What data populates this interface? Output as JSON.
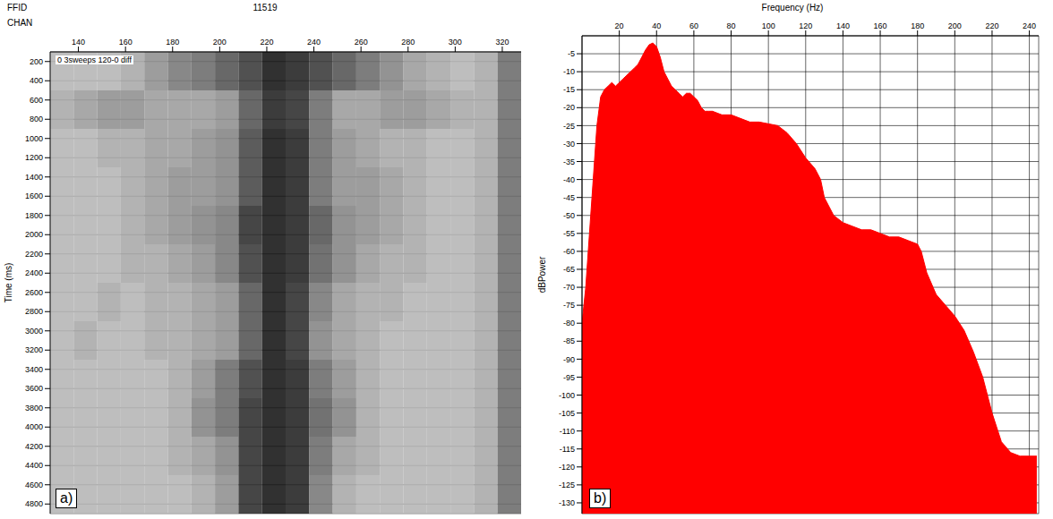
{
  "chart_data": [
    {
      "type": "heatmap",
      "title_label": "FFID",
      "title": "11519",
      "xlabel": "CHAN",
      "ylabel": "Time (ms)",
      "annotation": "0 3sweeps 120-0 diff",
      "panel_label": "a)",
      "color": "#000000",
      "grid": true,
      "xlim": [
        128,
        328
      ],
      "xticks": [
        140,
        160,
        180,
        200,
        220,
        240,
        260,
        280,
        300,
        320
      ],
      "ylim": [
        100,
        4900
      ],
      "yticks": [
        200,
        400,
        600,
        800,
        1000,
        1200,
        1400,
        1600,
        1800,
        2000,
        2200,
        2400,
        2600,
        2800,
        3000,
        3200,
        3400,
        3600,
        3800,
        4000,
        4200,
        4400,
        4600,
        4800
      ],
      "x_edges": [
        128,
        138,
        148,
        158,
        168,
        178,
        188,
        198,
        208,
        218,
        228,
        238,
        248,
        258,
        268,
        278,
        288,
        298,
        308,
        318,
        328
      ],
      "y_edges": [
        100,
        500,
        900,
        1300,
        1700,
        2100,
        2500,
        2900,
        3300,
        3700,
        4100,
        4500,
        4900
      ],
      "cells": [
        [
          0.3,
          0.3,
          0.3,
          0.35,
          0.45,
          0.55,
          0.6,
          0.7,
          0.8,
          0.95,
          0.9,
          0.8,
          0.7,
          0.6,
          0.5,
          0.4,
          0.35,
          0.3,
          0.35,
          0.6
        ],
        [
          0.35,
          0.4,
          0.45,
          0.45,
          0.4,
          0.4,
          0.4,
          0.45,
          0.7,
          0.9,
          0.85,
          0.6,
          0.4,
          0.4,
          0.45,
          0.45,
          0.4,
          0.35,
          0.35,
          0.6
        ],
        [
          0.3,
          0.3,
          0.35,
          0.35,
          0.4,
          0.4,
          0.45,
          0.5,
          0.75,
          0.95,
          0.9,
          0.6,
          0.45,
          0.4,
          0.35,
          0.35,
          0.3,
          0.3,
          0.35,
          0.6
        ],
        [
          0.3,
          0.3,
          0.3,
          0.35,
          0.4,
          0.45,
          0.45,
          0.5,
          0.75,
          0.95,
          0.9,
          0.6,
          0.45,
          0.45,
          0.4,
          0.35,
          0.3,
          0.3,
          0.35,
          0.6
        ],
        [
          0.3,
          0.3,
          0.3,
          0.35,
          0.4,
          0.45,
          0.5,
          0.55,
          0.85,
          0.95,
          0.9,
          0.7,
          0.5,
          0.45,
          0.4,
          0.35,
          0.3,
          0.3,
          0.35,
          0.6
        ],
        [
          0.3,
          0.3,
          0.3,
          0.35,
          0.35,
          0.4,
          0.45,
          0.55,
          0.8,
          0.95,
          0.9,
          0.65,
          0.5,
          0.4,
          0.35,
          0.35,
          0.3,
          0.3,
          0.35,
          0.6
        ],
        [
          0.3,
          0.3,
          0.35,
          0.3,
          0.35,
          0.35,
          0.4,
          0.45,
          0.7,
          0.95,
          0.85,
          0.55,
          0.4,
          0.35,
          0.35,
          0.3,
          0.3,
          0.3,
          0.35,
          0.6
        ],
        [
          0.3,
          0.35,
          0.3,
          0.3,
          0.35,
          0.35,
          0.4,
          0.45,
          0.7,
          0.95,
          0.85,
          0.5,
          0.4,
          0.35,
          0.3,
          0.3,
          0.3,
          0.3,
          0.35,
          0.6
        ],
        [
          0.3,
          0.3,
          0.3,
          0.3,
          0.3,
          0.35,
          0.45,
          0.6,
          0.8,
          0.95,
          0.9,
          0.6,
          0.45,
          0.35,
          0.3,
          0.3,
          0.3,
          0.3,
          0.35,
          0.6
        ],
        [
          0.3,
          0.3,
          0.3,
          0.3,
          0.3,
          0.35,
          0.5,
          0.6,
          0.85,
          0.95,
          0.9,
          0.65,
          0.5,
          0.35,
          0.3,
          0.3,
          0.3,
          0.3,
          0.35,
          0.6
        ],
        [
          0.3,
          0.3,
          0.3,
          0.3,
          0.3,
          0.35,
          0.4,
          0.5,
          0.85,
          0.95,
          0.9,
          0.6,
          0.4,
          0.35,
          0.3,
          0.3,
          0.3,
          0.3,
          0.35,
          0.6
        ],
        [
          0.3,
          0.3,
          0.3,
          0.3,
          0.3,
          0.3,
          0.35,
          0.45,
          0.85,
          0.95,
          0.9,
          0.55,
          0.35,
          0.3,
          0.3,
          0.3,
          0.3,
          0.3,
          0.35,
          0.6
        ]
      ]
    },
    {
      "type": "area",
      "xlabel": "Frequency (Hz)",
      "ylabel": "dBPower",
      "panel_label": "b)",
      "color": "#ff0000",
      "grid": true,
      "xlim": [
        0,
        245
      ],
      "xticks": [
        20,
        40,
        60,
        80,
        100,
        120,
        140,
        160,
        180,
        200,
        220,
        240
      ],
      "ylim": [
        -133,
        0
      ],
      "yticks": [
        -5,
        -10,
        -15,
        -20,
        -25,
        -30,
        -35,
        -40,
        -45,
        -50,
        -55,
        -60,
        -65,
        -70,
        -75,
        -80,
        -85,
        -90,
        -95,
        -100,
        -105,
        -110,
        -115,
        -120,
        -125,
        -130
      ],
      "x": [
        0,
        2,
        4,
        6,
        8,
        10,
        12,
        14,
        16,
        18,
        20,
        22,
        24,
        26,
        28,
        30,
        32,
        34,
        36,
        38,
        40,
        42,
        44,
        46,
        48,
        50,
        52,
        54,
        56,
        58,
        60,
        62,
        64,
        66,
        68,
        70,
        75,
        80,
        85,
        90,
        95,
        100,
        105,
        110,
        115,
        120,
        125,
        128,
        130,
        135,
        140,
        145,
        150,
        155,
        160,
        165,
        170,
        175,
        180,
        182,
        185,
        190,
        195,
        200,
        205,
        210,
        215,
        220,
        225,
        230,
        235,
        240,
        244
      ],
      "values": [
        -80,
        -70,
        -55,
        -40,
        -25,
        -17,
        -15,
        -14,
        -13,
        -14,
        -13,
        -12,
        -11,
        -10,
        -9,
        -8,
        -6,
        -4,
        -2.5,
        -2,
        -3,
        -6,
        -10,
        -12,
        -14,
        -15,
        -16,
        -17,
        -16,
        -16,
        -17,
        -18,
        -20,
        -21,
        -21,
        -21,
        -22,
        -22,
        -23,
        -24,
        -24,
        -24.5,
        -25,
        -27,
        -30,
        -34,
        -37,
        -40,
        -45,
        -50,
        -52,
        -53,
        -54,
        -54,
        -55,
        -56,
        -56,
        -57,
        -58,
        -60,
        -66,
        -72,
        -75,
        -78,
        -82,
        -88,
        -95,
        -105,
        -113,
        -116,
        -117,
        -117,
        -117
      ]
    }
  ]
}
